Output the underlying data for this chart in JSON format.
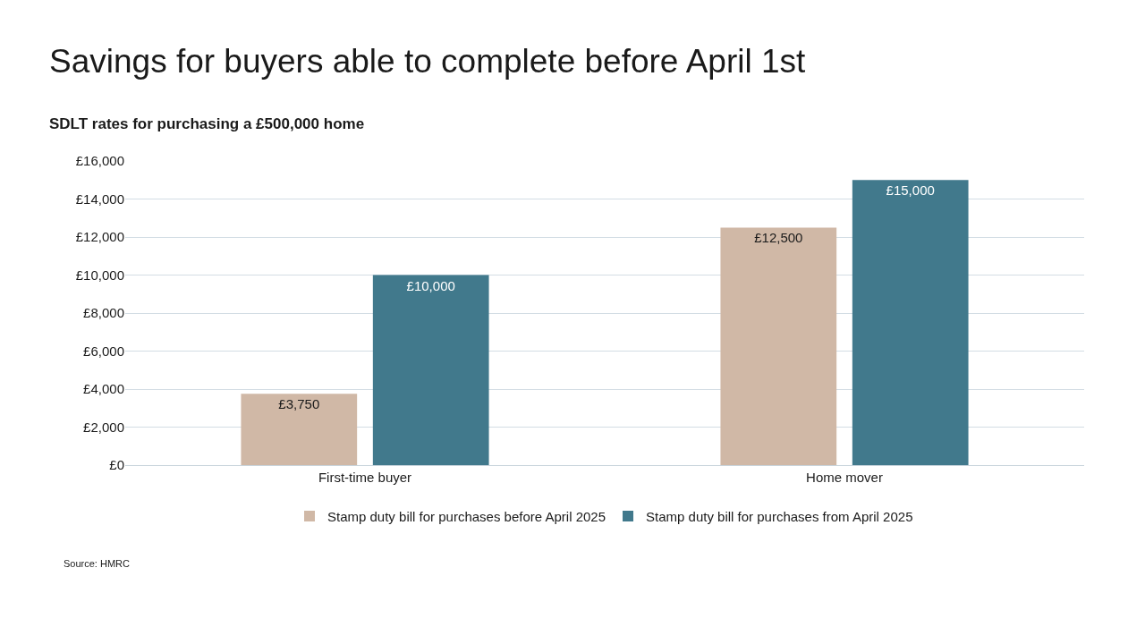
{
  "chart_data": {
    "type": "bar",
    "title": "Savings for buyers able to complete before April 1st",
    "subtitle": "SDLT rates for purchasing a £500,000 home",
    "categories": [
      "First-time buyer",
      "Home mover"
    ],
    "series": [
      {
        "name": "Stamp duty bill for purchases before April 2025",
        "color": "#d0b8a6",
        "values": [
          3750,
          12500
        ],
        "value_labels": [
          "£3,750",
          "£12,500"
        ]
      },
      {
        "name": "Stamp duty bill for purchases from April 2025",
        "color": "#41798c",
        "values": [
          10000,
          15000
        ],
        "value_labels": [
          "£10,000",
          "£15,000"
        ]
      }
    ],
    "ylim": [
      0,
      16000
    ],
    "yticks": [
      {
        "value": 0,
        "label": "£0"
      },
      {
        "value": 2000,
        "label": "£2,000"
      },
      {
        "value": 4000,
        "label": "£4,000"
      },
      {
        "value": 6000,
        "label": "£6,000"
      },
      {
        "value": 8000,
        "label": "£8,000"
      },
      {
        "value": 10000,
        "label": "£10,000"
      },
      {
        "value": 12000,
        "label": "£12,000"
      },
      {
        "value": 14000,
        "label": "£14,000"
      },
      {
        "value": 16000,
        "label": "£16,000"
      }
    ],
    "grid": "y",
    "legend": "bottom",
    "annotations": [
      "Source: HMRC"
    ]
  }
}
